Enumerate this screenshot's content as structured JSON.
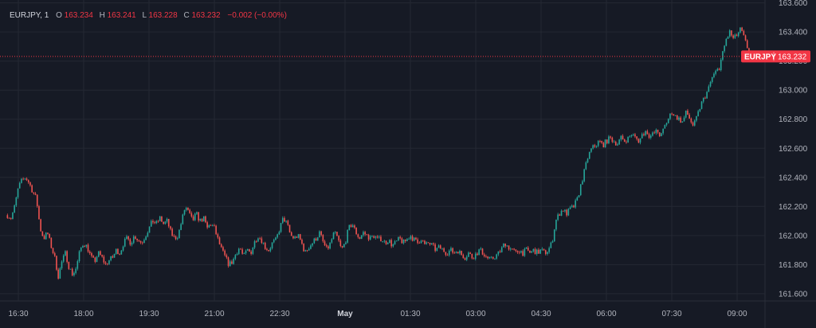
{
  "legend": {
    "symbol": "EURJPY, 1",
    "open_label": "O",
    "open": "163.234",
    "high_label": "H",
    "high": "163.241",
    "low_label": "L",
    "low": "163.228",
    "close_label": "C",
    "close": "163.232",
    "change": "−0.002 (−0.00%)"
  },
  "price_tag": {
    "symbol": "EURJPY",
    "price": "163.232"
  },
  "colors": {
    "background": "#161a25",
    "grid": "#242833",
    "text": "#b2b5be",
    "up": "#26a69a",
    "down": "#ef5350",
    "tag": "#f23645",
    "last_line": "#f23645"
  },
  "chart_data": {
    "type": "candlestick",
    "interval_minutes": 1,
    "y_ticks": [
      "161.600",
      "161.800",
      "162.000",
      "162.200",
      "162.400",
      "162.600",
      "162.800",
      "163.000",
      "163.200",
      "163.400",
      "163.600"
    ],
    "x_ticks": [
      {
        "t": "16:30",
        "bold": false
      },
      {
        "t": "18:00",
        "bold": false
      },
      {
        "t": "19:30",
        "bold": false
      },
      {
        "t": "21:00",
        "bold": false
      },
      {
        "t": "22:30",
        "bold": false
      },
      {
        "t": "May",
        "bold": true
      },
      {
        "t": "01:30",
        "bold": false
      },
      {
        "t": "03:00",
        "bold": false
      },
      {
        "t": "04:30",
        "bold": false
      },
      {
        "t": "06:00",
        "bold": false
      },
      {
        "t": "07:30",
        "bold": false
      },
      {
        "t": "09:00",
        "bold": false
      }
    ],
    "ylim": [
      161.55,
      163.62
    ],
    "last_price": 163.232,
    "close_path": [
      [
        "16:15",
        162.14
      ],
      [
        "16:20",
        162.12
      ],
      [
        "16:25",
        162.2
      ],
      [
        "16:30",
        162.33
      ],
      [
        "16:35",
        162.38
      ],
      [
        "16:40",
        162.4
      ],
      [
        "16:45",
        162.36
      ],
      [
        "16:50",
        162.3
      ],
      [
        "16:55",
        162.25
      ],
      [
        "17:00",
        162.05
      ],
      [
        "17:05",
        161.98
      ],
      [
        "17:10",
        162.02
      ],
      [
        "17:15",
        161.93
      ],
      [
        "17:20",
        161.85
      ],
      [
        "17:25",
        161.72
      ],
      [
        "17:30",
        161.82
      ],
      [
        "17:35",
        161.88
      ],
      [
        "17:40",
        161.78
      ],
      [
        "17:45",
        161.73
      ],
      [
        "17:50",
        161.78
      ],
      [
        "17:55",
        161.9
      ],
      [
        "18:00",
        161.95
      ],
      [
        "18:05",
        161.92
      ],
      [
        "18:10",
        161.85
      ],
      [
        "18:15",
        161.82
      ],
      [
        "18:20",
        161.88
      ],
      [
        "18:25",
        161.85
      ],
      [
        "18:30",
        161.8
      ],
      [
        "18:35",
        161.83
      ],
      [
        "18:40",
        161.85
      ],
      [
        "18:45",
        161.9
      ],
      [
        "18:50",
        161.88
      ],
      [
        "18:55",
        161.95
      ],
      [
        "19:00",
        161.98
      ],
      [
        "19:05",
        161.95
      ],
      [
        "19:10",
        162.0
      ],
      [
        "19:15",
        161.97
      ],
      [
        "19:20",
        161.95
      ],
      [
        "19:25",
        162.0
      ],
      [
        "19:30",
        162.05
      ],
      [
        "19:35",
        162.1
      ],
      [
        "19:40",
        162.08
      ],
      [
        "19:45",
        162.12
      ],
      [
        "19:50",
        162.08
      ],
      [
        "19:55",
        162.1
      ],
      [
        "20:00",
        162.02
      ],
      [
        "20:05",
        161.98
      ],
      [
        "20:10",
        162.0
      ],
      [
        "20:15",
        162.1
      ],
      [
        "20:20",
        162.2
      ],
      [
        "20:25",
        162.15
      ],
      [
        "20:30",
        162.1
      ],
      [
        "20:35",
        162.15
      ],
      [
        "20:40",
        162.1
      ],
      [
        "20:45",
        162.12
      ],
      [
        "20:50",
        162.05
      ],
      [
        "20:55",
        162.08
      ],
      [
        "21:00",
        162.05
      ],
      [
        "21:05",
        161.97
      ],
      [
        "21:10",
        161.9
      ],
      [
        "21:15",
        161.85
      ],
      [
        "21:20",
        161.8
      ],
      [
        "21:25",
        161.82
      ],
      [
        "21:30",
        161.88
      ],
      [
        "21:35",
        161.92
      ],
      [
        "21:40",
        161.85
      ],
      [
        "21:45",
        161.9
      ],
      [
        "21:50",
        161.88
      ],
      [
        "21:55",
        161.95
      ],
      [
        "22:00",
        162.0
      ],
      [
        "22:05",
        161.97
      ],
      [
        "22:10",
        161.92
      ],
      [
        "22:15",
        161.9
      ],
      [
        "22:20",
        161.95
      ],
      [
        "22:25",
        161.97
      ],
      [
        "22:30",
        162.05
      ],
      [
        "22:35",
        162.12
      ],
      [
        "22:40",
        162.08
      ],
      [
        "22:45",
        162.0
      ],
      [
        "22:50",
        161.98
      ],
      [
        "22:55",
        162.0
      ],
      [
        "23:00",
        161.95
      ],
      [
        "23:05",
        161.88
      ],
      [
        "23:10",
        161.92
      ],
      [
        "23:15",
        161.95
      ],
      [
        "23:20",
        161.98
      ],
      [
        "23:25",
        162.02
      ],
      [
        "23:30",
        161.95
      ],
      [
        "23:35",
        161.9
      ],
      [
        "23:40",
        161.95
      ],
      [
        "23:45",
        162.02
      ],
      [
        "23:50",
        161.98
      ],
      [
        "23:55",
        161.9
      ],
      [
        "00:00",
        161.95
      ],
      [
        "00:05",
        162.05
      ],
      [
        "00:10",
        162.08
      ],
      [
        "00:15",
        162.02
      ],
      [
        "00:20",
        161.98
      ],
      [
        "00:25",
        162.02
      ],
      [
        "00:30",
        162.0
      ],
      [
        "00:35",
        161.98
      ],
      [
        "00:40",
        162.0
      ],
      [
        "00:45",
        161.97
      ],
      [
        "00:50",
        161.98
      ],
      [
        "00:55",
        161.95
      ],
      [
        "01:00",
        161.97
      ],
      [
        "01:05",
        161.93
      ],
      [
        "01:10",
        161.95
      ],
      [
        "01:15",
        161.98
      ],
      [
        "01:20",
        161.95
      ],
      [
        "01:25",
        161.97
      ],
      [
        "01:30",
        162.0
      ],
      [
        "01:35",
        161.97
      ],
      [
        "01:40",
        161.95
      ],
      [
        "01:45",
        161.98
      ],
      [
        "01:50",
        161.93
      ],
      [
        "01:55",
        161.95
      ],
      [
        "02:00",
        161.93
      ],
      [
        "02:05",
        161.9
      ],
      [
        "02:10",
        161.92
      ],
      [
        "02:15",
        161.9
      ],
      [
        "02:20",
        161.88
      ],
      [
        "02:25",
        161.9
      ],
      [
        "02:30",
        161.88
      ],
      [
        "02:35",
        161.9
      ],
      [
        "02:40",
        161.87
      ],
      [
        "02:45",
        161.85
      ],
      [
        "02:50",
        161.88
      ],
      [
        "02:55",
        161.85
      ],
      [
        "03:00",
        161.87
      ],
      [
        "03:05",
        161.9
      ],
      [
        "03:10",
        161.88
      ],
      [
        "03:15",
        161.85
      ],
      [
        "03:20",
        161.83
      ],
      [
        "03:25",
        161.85
      ],
      [
        "03:30",
        161.87
      ],
      [
        "03:35",
        161.9
      ],
      [
        "03:40",
        161.95
      ],
      [
        "03:45",
        161.92
      ],
      [
        "03:50",
        161.9
      ],
      [
        "03:55",
        161.88
      ],
      [
        "04:00",
        161.9
      ],
      [
        "04:05",
        161.88
      ],
      [
        "04:10",
        161.9
      ],
      [
        "04:15",
        161.88
      ],
      [
        "04:20",
        161.9
      ],
      [
        "04:25",
        161.88
      ],
      [
        "04:30",
        161.9
      ],
      [
        "04:35",
        161.88
      ],
      [
        "04:40",
        161.9
      ],
      [
        "04:45",
        161.95
      ],
      [
        "04:50",
        162.1
      ],
      [
        "04:55",
        162.15
      ],
      [
        "05:00",
        162.18
      ],
      [
        "05:05",
        162.15
      ],
      [
        "05:10",
        162.18
      ],
      [
        "05:15",
        162.2
      ],
      [
        "05:20",
        162.25
      ],
      [
        "05:25",
        162.35
      ],
      [
        "05:30",
        162.45
      ],
      [
        "05:35",
        162.55
      ],
      [
        "05:40",
        162.6
      ],
      [
        "05:45",
        162.62
      ],
      [
        "05:50",
        162.65
      ],
      [
        "05:55",
        162.62
      ],
      [
        "06:00",
        162.65
      ],
      [
        "06:05",
        162.67
      ],
      [
        "06:10",
        162.65
      ],
      [
        "06:15",
        162.63
      ],
      [
        "06:20",
        162.67
      ],
      [
        "06:25",
        162.65
      ],
      [
        "06:30",
        162.67
      ],
      [
        "06:35",
        162.7
      ],
      [
        "06:40",
        162.67
      ],
      [
        "06:45",
        162.65
      ],
      [
        "06:50",
        162.7
      ],
      [
        "06:55",
        162.72
      ],
      [
        "07:00",
        162.68
      ],
      [
        "07:05",
        162.7
      ],
      [
        "07:10",
        162.72
      ],
      [
        "07:15",
        162.68
      ],
      [
        "07:20",
        162.75
      ],
      [
        "07:25",
        162.8
      ],
      [
        "07:30",
        162.85
      ],
      [
        "07:35",
        162.82
      ],
      [
        "07:40",
        162.8
      ],
      [
        "07:45",
        162.78
      ],
      [
        "07:50",
        162.85
      ],
      [
        "07:55",
        162.8
      ],
      [
        "08:00",
        162.75
      ],
      [
        "08:05",
        162.82
      ],
      [
        "08:10",
        162.9
      ],
      [
        "08:15",
        162.95
      ],
      [
        "08:20",
        163.0
      ],
      [
        "08:25",
        163.08
      ],
      [
        "08:30",
        163.12
      ],
      [
        "08:35",
        163.15
      ],
      [
        "08:40",
        163.25
      ],
      [
        "08:45",
        163.35
      ],
      [
        "08:50",
        163.4
      ],
      [
        "08:55",
        163.35
      ],
      [
        "09:00",
        163.38
      ],
      [
        "09:05",
        163.42
      ],
      [
        "09:10",
        163.35
      ],
      [
        "09:15",
        163.28
      ],
      [
        "09:20",
        163.25
      ],
      [
        "09:25",
        163.23
      ],
      [
        "09:30",
        163.2
      ],
      [
        "09:35",
        163.232
      ]
    ]
  }
}
